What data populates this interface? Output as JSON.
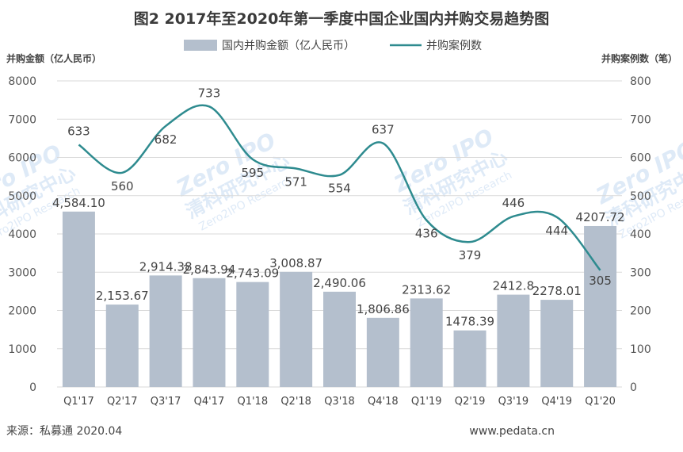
{
  "chart_data": {
    "type": "bar+line",
    "title": "图2 2017年至2020年第一季度中国企业国内并购交易趋势图",
    "ylabel_left": "并购金额（亿人民币）",
    "ylabel_right": "并购案例数（笔）",
    "categories": [
      "Q1'17",
      "Q2'17",
      "Q3'17",
      "Q4'17",
      "Q1'18",
      "Q2'18",
      "Q3'18",
      "Q4'18",
      "Q1'19",
      "Q2'19",
      "Q3'19",
      "Q4'19",
      "Q1'20"
    ],
    "ylim_left": [
      0,
      8000
    ],
    "ylim_right": [
      0,
      800
    ],
    "yticks_left": [
      "0",
      "1000",
      "2000",
      "3000",
      "4000",
      "5000",
      "6000",
      "7000",
      "8000"
    ],
    "yticks_right": [
      "0",
      "100",
      "200",
      "300",
      "400",
      "500",
      "600",
      "700",
      "800"
    ],
    "grid": true,
    "legend_position": "top-center",
    "series": [
      {
        "name": "国内并购金额（亿人民币）",
        "type": "bar",
        "axis": "left",
        "color": "#b4bfcd",
        "values": [
          4584.1,
          2153.67,
          2914.38,
          2843.94,
          2743.09,
          3008.87,
          2490.06,
          1806.86,
          2313.62,
          1478.39,
          2412.8,
          2278.01,
          4207.72
        ],
        "labels": [
          "4,584.10",
          "2,153.67",
          "2,914.38",
          "2,843.94",
          "2,743.09",
          "3,008.87",
          "2,490.06",
          "1,806.86",
          "2313.62",
          "1478.39",
          "2412.8",
          "2278.01",
          "4207.72"
        ]
      },
      {
        "name": "并购案例数",
        "type": "line",
        "axis": "right",
        "color": "#2e8b8f",
        "values": [
          633,
          560,
          682,
          733,
          595,
          571,
          554,
          637,
          436,
          379,
          446,
          444,
          305
        ],
        "labels": [
          "633",
          "560",
          "682",
          "733",
          "595",
          "571",
          "554",
          "637",
          "436",
          "379",
          "446",
          "444",
          "305"
        ]
      }
    ]
  },
  "footer": {
    "source": "来源：私募通 2020.04",
    "website": "www.pedata.cn"
  },
  "watermark": {
    "logo_text": "Zero IPO",
    "cn_text": "清科研究中心",
    "en_text": "Zero2IPO Research"
  }
}
